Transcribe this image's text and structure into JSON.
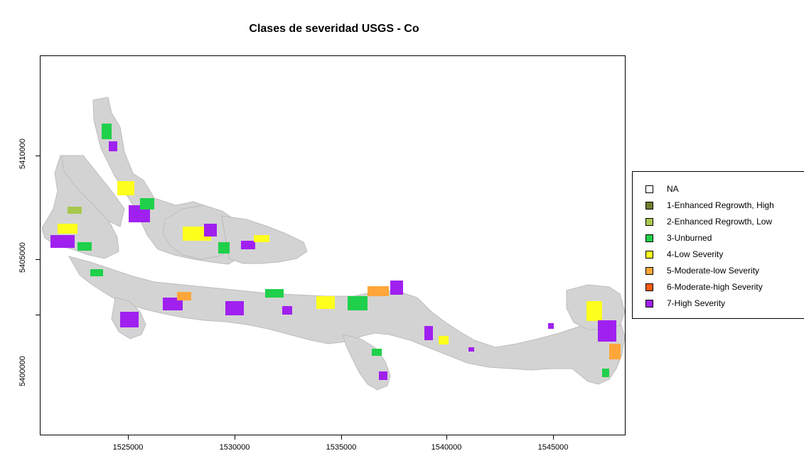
{
  "title": "Clases de severidad USGS - Co",
  "x_axis": {
    "ticks": [
      "1525000",
      "1530000",
      "1535000",
      "1540000",
      "1545000"
    ]
  },
  "y_axis": {
    "ticks": [
      "5400000",
      "5405000",
      "5410000"
    ]
  },
  "legend": {
    "items": [
      {
        "label": "NA",
        "color": "#ffffff"
      },
      {
        "label": "1-Enhanced Regrowth, High",
        "color": "#6f7f2e"
      },
      {
        "label": "2-Enhanced Regrowth, Low",
        "color": "#a8c84e"
      },
      {
        "label": "3-Unburned",
        "color": "#1fd04a"
      },
      {
        "label": "4-Low Severity",
        "color": "#ffff1e"
      },
      {
        "label": "5-Moderate-low Severity",
        "color": "#ffa63a"
      },
      {
        "label": "6-Moderate-high Severity",
        "color": "#ff5a10"
      },
      {
        "label": "7-High Severity",
        "color": "#a020f0"
      }
    ]
  },
  "colors": {
    "landmass": "#d3d3d3",
    "landmass_edge": "#bdbdbd"
  }
}
